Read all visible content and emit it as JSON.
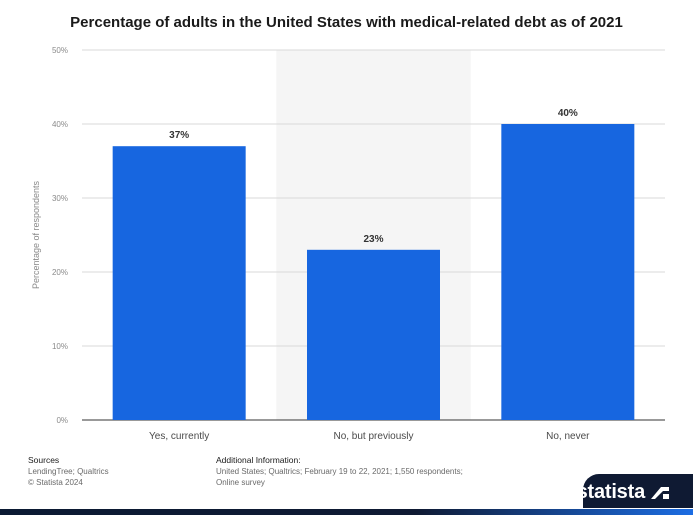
{
  "chart_data": {
    "type": "bar",
    "title": "Percentage of adults in the United States with medical-related debt as of 2021",
    "categories": [
      "Yes, currently",
      "No, but previously",
      "No, never"
    ],
    "values": [
      37,
      23,
      40
    ],
    "value_labels": [
      "37%",
      "23%",
      "40%"
    ],
    "xlabel": "",
    "ylabel": "Percentage of respondents",
    "ylim": [
      0,
      50
    ],
    "yticks": [
      0,
      10,
      20,
      30,
      40,
      50
    ],
    "ytick_labels": [
      "0%",
      "10%",
      "20%",
      "30%",
      "40%",
      "50%"
    ],
    "highlighted_category": "No, but previously",
    "grid": true,
    "bar_color": "#1766e0"
  },
  "footer": {
    "sources_heading": "Sources",
    "sources_line1": "LendingTree; Qualtrics",
    "sources_line2": "© Statista 2024",
    "additional_heading": "Additional Information:",
    "additional_line1": "United States; Qualtrics; February 19 to 22, 2021; 1,550 respondents;",
    "additional_line2": "Online survey"
  },
  "brand": {
    "name": "statista"
  }
}
